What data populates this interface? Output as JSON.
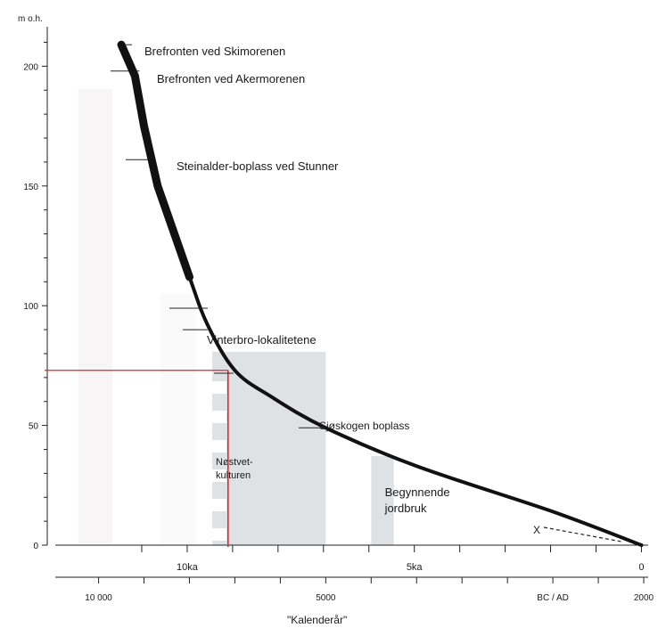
{
  "chart_data": {
    "type": "line",
    "y_axis": {
      "unit_label": "m o.h.",
      "ticks": [
        0,
        50,
        100,
        150,
        200
      ],
      "range": [
        0,
        218
      ]
    },
    "x_axis_ka": {
      "ticks": [
        {
          "label": "10ka",
          "year": 8050
        },
        {
          "label": "5ka",
          "year": 3050
        },
        {
          "label": "0",
          "year": 1950
        }
      ]
    },
    "x_axis_calendar": {
      "ticks": [
        {
          "label": "10 000",
          "year": -10000
        },
        {
          "label": "5000",
          "year": -5000
        },
        {
          "label": "BC / AD",
          "year": 0
        },
        {
          "label": "2000",
          "year": 2000
        }
      ],
      "title": "\"Kalenderår\""
    },
    "x_range": [
      -10600,
      2000
    ],
    "curve": [
      {
        "year": -9500,
        "elev": 209
      },
      {
        "year": -9200,
        "elev": 196
      },
      {
        "year": -9000,
        "elev": 175
      },
      {
        "year": -8700,
        "elev": 150
      },
      {
        "year": -8000,
        "elev": 112
      },
      {
        "year": -7600,
        "elev": 92
      },
      {
        "year": -7000,
        "elev": 73
      },
      {
        "year": -6200,
        "elev": 62
      },
      {
        "year": -5000,
        "elev": 49
      },
      {
        "year": -3000,
        "elev": 33
      },
      {
        "year": 0,
        "elev": 14
      },
      {
        "year": 1950,
        "elev": 0
      }
    ],
    "annotations": [
      {
        "text": "Brefronten ved Skimorenen",
        "year": -9400,
        "elev": 209
      },
      {
        "text": "Brefronten ved Akermorenen",
        "year": -9100,
        "elev": 198
      },
      {
        "text": "Steinalder-boplass ved Stunner",
        "year": -8750,
        "elev": 161
      },
      {
        "text": "Vinterbro-lokalitetene",
        "year": -7600,
        "elev": 90
      },
      {
        "text": "Sjøskogen boplass",
        "year": -5000,
        "elev": 49
      }
    ],
    "bands": [
      {
        "label": "Nøstvet-kulturen",
        "start": -7500,
        "end": -5000
      },
      {
        "label": "Begynnende jordbruk",
        "start": -4000,
        "end": -3500
      }
    ],
    "marker": {
      "year": -7150,
      "elev": 73,
      "color": "#e0262d"
    },
    "x_label": "X",
    "colors": {
      "curve": "#111111",
      "band": "#dfe2e5",
      "red": "#e0262d"
    }
  }
}
